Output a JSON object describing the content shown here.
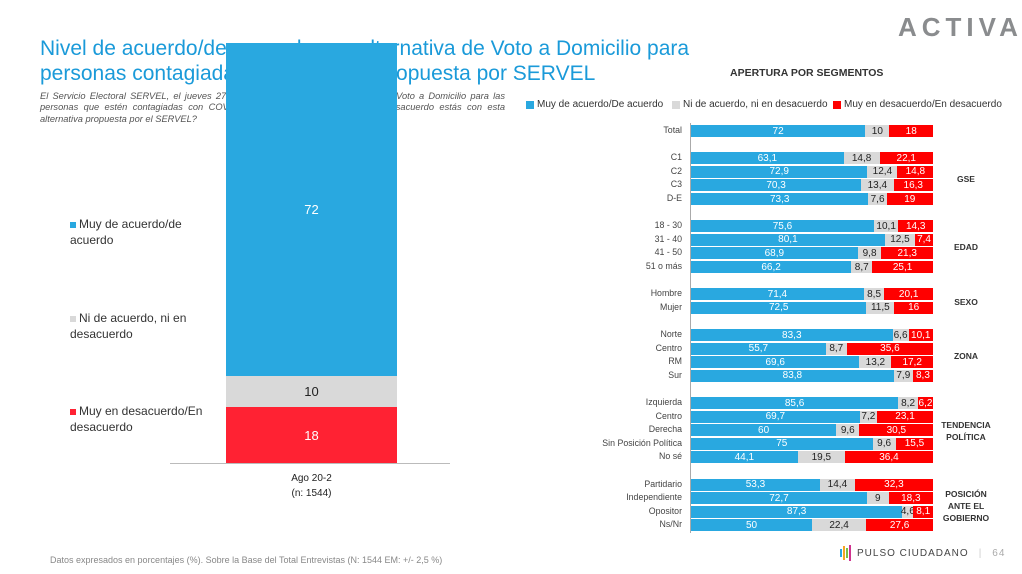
{
  "header": {
    "title": "Nivel de acuerdo/desacuerdo con alternativa de Voto a Domicilio para personas contagiadas por Covid-19 propuesta por SERVEL",
    "logo": "ACTIVA",
    "question": "El Servicio Electoral SERVEL, el jueves 27 de agosto propuso una alternativa de Voto a Domicilio para las personas que estén contagiadas con COVID-19. ¿qué tan de acuerdo o en desacuerdo estás con esta alternativa propuesta por el SERVEL?"
  },
  "colors": {
    "agree": "#29a8e0",
    "neutral": "#d9d9d9",
    "disagree": "#ff0000"
  },
  "chart_data": [
    {
      "type": "bar",
      "stacked": true,
      "categories": [
        "Ago 20-2"
      ],
      "category_note": "(n: 1544)",
      "series": [
        {
          "name": "Muy de acuerdo/de acuerdo",
          "values": [
            72
          ]
        },
        {
          "name": "Ni de acuerdo, ni en desacuerdo",
          "values": [
            10
          ]
        },
        {
          "name": "Muy en desacuerdo/En desacuerdo",
          "values": [
            18
          ]
        }
      ],
      "legend": "left"
    },
    {
      "type": "bar",
      "orientation": "horizontal",
      "stacked": true,
      "title": "APERTURA POR SEGMENTOS",
      "legend_position": "top",
      "series_names": [
        "Muy de acuerdo/De acuerdo",
        "Ni de acuerdo, ni en desacuerdo",
        "Muy en desacuerdo/En desacuerdo"
      ],
      "groups": [
        {
          "label": "",
          "rows": [
            {
              "label": "Total",
              "values": [
                72,
                10,
                18
              ]
            }
          ]
        },
        {
          "label": "GSE",
          "rows": [
            {
              "label": "C1",
              "values": [
                63.1,
                14.8,
                22.1
              ]
            },
            {
              "label": "C2",
              "values": [
                72.9,
                12.4,
                14.8
              ]
            },
            {
              "label": "C3",
              "values": [
                70.3,
                13.4,
                16.3
              ]
            },
            {
              "label": "D-E",
              "values": [
                73.3,
                7.6,
                19
              ]
            }
          ]
        },
        {
          "label": "EDAD",
          "rows": [
            {
              "label": "18 - 30",
              "values": [
                75.6,
                10.1,
                14.3
              ]
            },
            {
              "label": "31 - 40",
              "values": [
                80.1,
                12.5,
                7.4
              ]
            },
            {
              "label": "41 - 50",
              "values": [
                68.9,
                9.8,
                21.3
              ]
            },
            {
              "label": "51 o más",
              "values": [
                66.2,
                8.7,
                25.1
              ]
            }
          ]
        },
        {
          "label": "SEXO",
          "rows": [
            {
              "label": "Hombre",
              "values": [
                71.4,
                8.5,
                20.1
              ]
            },
            {
              "label": "Mujer",
              "values": [
                72.5,
                11.5,
                16
              ]
            }
          ]
        },
        {
          "label": "ZONA",
          "rows": [
            {
              "label": "Norte",
              "values": [
                83.3,
                6.6,
                10.1
              ]
            },
            {
              "label": "Centro",
              "values": [
                55.7,
                8.7,
                35.6
              ]
            },
            {
              "label": "RM",
              "values": [
                69.6,
                13.2,
                17.2
              ]
            },
            {
              "label": "Sur",
              "values": [
                83.8,
                7.9,
                8.3
              ]
            }
          ]
        },
        {
          "label": "TENDENCIA POLÍTICA",
          "rows": [
            {
              "label": "Izquierda",
              "values": [
                85.6,
                8.2,
                6.2
              ]
            },
            {
              "label": "Centro",
              "values": [
                69.7,
                7.2,
                23.1
              ]
            },
            {
              "label": "Derecha",
              "values": [
                60,
                9.6,
                30.5
              ]
            },
            {
              "label": "Sin Posición Política",
              "values": [
                75,
                9.6,
                15.5
              ]
            },
            {
              "label": "No sé",
              "values": [
                44.1,
                19.5,
                36.4
              ]
            }
          ]
        },
        {
          "label": "POSICIÓN ANTE EL GOBIERNO",
          "rows": [
            {
              "label": "Partidario",
              "values": [
                53.3,
                14.4,
                32.3
              ]
            },
            {
              "label": "Independiente",
              "values": [
                72.7,
                9,
                18.3
              ]
            },
            {
              "label": "Opositor",
              "values": [
                87.3,
                4.6,
                8.1
              ]
            },
            {
              "label": "Ns/Nr",
              "values": [
                50,
                22.4,
                27.6
              ]
            }
          ]
        }
      ]
    }
  ],
  "footer": {
    "note": "Datos expresados en porcentajes (%). Sobre la Base del Total Entrevistas (N: 1544  EM: +/- 2,5 %)",
    "brand": "PULSO CIUDADANO",
    "page": "64"
  }
}
